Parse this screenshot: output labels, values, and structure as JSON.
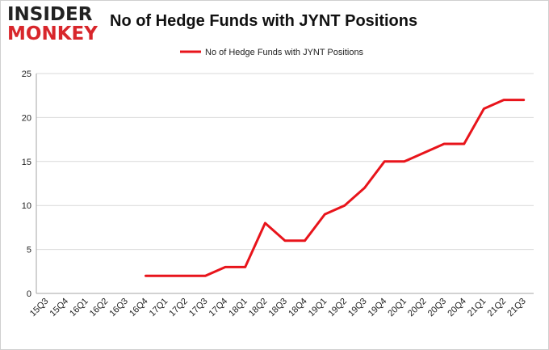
{
  "logo": {
    "line1": "INSIDER",
    "line2": "MONKEY"
  },
  "chart_data": {
    "type": "line",
    "title": "No of Hedge Funds with JYNT Positions",
    "legend": {
      "position": "top-center"
    },
    "categories": [
      "15Q3",
      "15Q4",
      "16Q1",
      "16Q2",
      "16Q3",
      "16Q4",
      "17Q1",
      "17Q2",
      "17Q3",
      "17Q4",
      "18Q1",
      "18Q2",
      "18Q3",
      "18Q4",
      "19Q1",
      "19Q2",
      "19Q3",
      "19Q4",
      "20Q1",
      "20Q2",
      "20Q3",
      "20Q4",
      "21Q1",
      "21Q2",
      "21Q3"
    ],
    "series": [
      {
        "name": "No of Hedge Funds with JYNT Positions",
        "color": "#e8141b",
        "values": [
          null,
          null,
          null,
          null,
          null,
          2,
          2,
          2,
          2,
          3,
          3,
          8,
          6,
          6,
          9,
          10,
          12,
          15,
          15,
          16,
          17,
          17,
          21,
          22,
          22
        ]
      }
    ],
    "ylim": [
      0,
      25
    ],
    "yticks": [
      0,
      5,
      10,
      15,
      20,
      25
    ],
    "grid": true,
    "xlabel": "",
    "ylabel": ""
  }
}
